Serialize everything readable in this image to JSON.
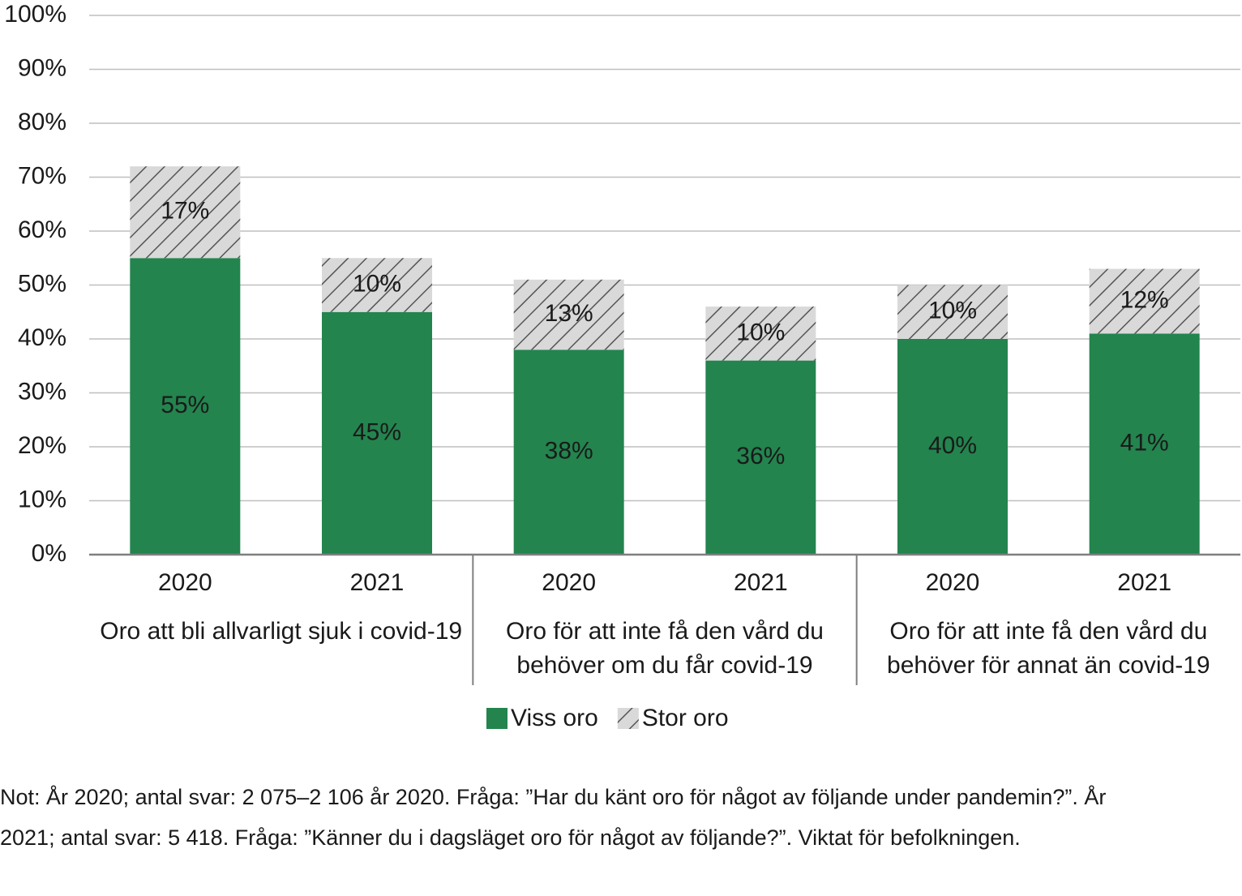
{
  "chart_data": {
    "type": "bar",
    "stacked": true,
    "categories": [
      "2020",
      "2021",
      "2020",
      "2021",
      "2020",
      "2021"
    ],
    "groups": [
      "Oro att bli allvarligt sjuk i covid-19",
      "Oro för att inte få den vård du behöver om du får covid-19",
      "Oro för att inte få den vård du behöver för annat än covid-19"
    ],
    "series": [
      {
        "name": "Viss oro",
        "color": "#23844e",
        "values": [
          55,
          45,
          38,
          36,
          40,
          41
        ],
        "value_labels": [
          "55%",
          "45%",
          "38%",
          "36%",
          "40%",
          "41%"
        ]
      },
      {
        "name": "Stor oro",
        "color": "#d9d9d9",
        "pattern": "hatch",
        "values": [
          17,
          10,
          13,
          10,
          10,
          12
        ],
        "value_labels": [
          "17%",
          "10%",
          "13%",
          "10%",
          "10%",
          "12%"
        ]
      }
    ],
    "ylim": [
      0,
      100
    ],
    "yticks": [
      {
        "value": 0,
        "label": "0%"
      },
      {
        "value": 10,
        "label": "10%"
      },
      {
        "value": 20,
        "label": "20%"
      },
      {
        "value": 30,
        "label": "30%"
      },
      {
        "value": 40,
        "label": "40%"
      },
      {
        "value": 50,
        "label": "50%"
      },
      {
        "value": 60,
        "label": "60%"
      },
      {
        "value": 70,
        "label": "70%"
      },
      {
        "value": 80,
        "label": "80%"
      },
      {
        "value": 90,
        "label": "90%"
      },
      {
        "value": 100,
        "label": "100%"
      }
    ],
    "grid": true,
    "legend": "bottom",
    "note": "Not: År 2020; antal svar: 2 075–2 106 år 2020. Fråga: ”Har du känt oro för något av följande under pandemin?”. År 2021; antal svar: 5 418. Fråga: ”Känner du i dagsläget oro för något av följande?”. Viktat för befolkningen."
  }
}
